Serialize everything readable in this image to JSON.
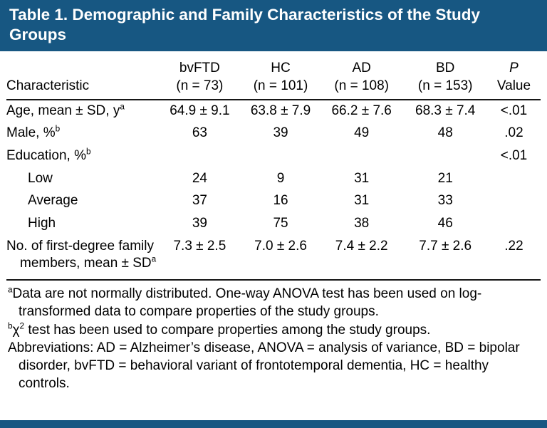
{
  "title": "Table 1. Demographic and Family Characteristics of the Study Groups",
  "colors": {
    "header_bg": "#175782",
    "rule": "#161616",
    "text": "#000000",
    "title_text": "#ffffff"
  },
  "table": {
    "columns": [
      {
        "label": "Characteristic",
        "sub": ""
      },
      {
        "label": "bvFTD",
        "sub": "(n = 73)"
      },
      {
        "label": "HC",
        "sub": "(n = 101)"
      },
      {
        "label": "AD",
        "sub": "(n = 108)"
      },
      {
        "label": "BD",
        "sub": "(n = 153)"
      },
      {
        "label": "P",
        "sub": "Value"
      }
    ],
    "rows": [
      {
        "label": "Age, mean ± SD, y",
        "sup": "a",
        "values": [
          "64.9 ± 9.1",
          "63.8 ± 7.9",
          "66.2 ± 7.6",
          "68.3 ± 7.4",
          "<.01"
        ]
      },
      {
        "label": "Male, %",
        "sup": "b",
        "values": [
          "63",
          "39",
          "49",
          "48",
          ".02"
        ]
      },
      {
        "label": "Education, %",
        "sup": "b",
        "values": [
          "",
          "",
          "",
          "",
          "<.01"
        ]
      },
      {
        "label": "Low",
        "values": [
          "24",
          "9",
          "31",
          "21",
          ""
        ]
      },
      {
        "label": "Average",
        "values": [
          "37",
          "16",
          "31",
          "33",
          ""
        ]
      },
      {
        "label": "High",
        "values": [
          "39",
          "75",
          "38",
          "46",
          ""
        ]
      },
      {
        "label": "No. of first-degree family members, mean ± SD",
        "sup": "a",
        "values": [
          "7.3 ± 2.5",
          "7.0 ± 2.6",
          "7.4 ± 2.2",
          "7.7 ± 2.6",
          ".22"
        ]
      }
    ]
  },
  "footnotes": {
    "a": {
      "marker": "a",
      "text": "Data are not normally distributed. One-way ANOVA test has been used on log-transformed data to compare properties of the study groups."
    },
    "b": {
      "marker": "b",
      "pre": "χ",
      "sup": "2",
      "text": " test has been used to compare properties among the study groups."
    },
    "abbreviations": "Abbreviations: AD = Alzheimer’s disease, ANOVA = analysis of variance, BD = bipolar disorder, bvFTD = behavioral variant of frontotemporal dementia, HC = healthy controls."
  }
}
